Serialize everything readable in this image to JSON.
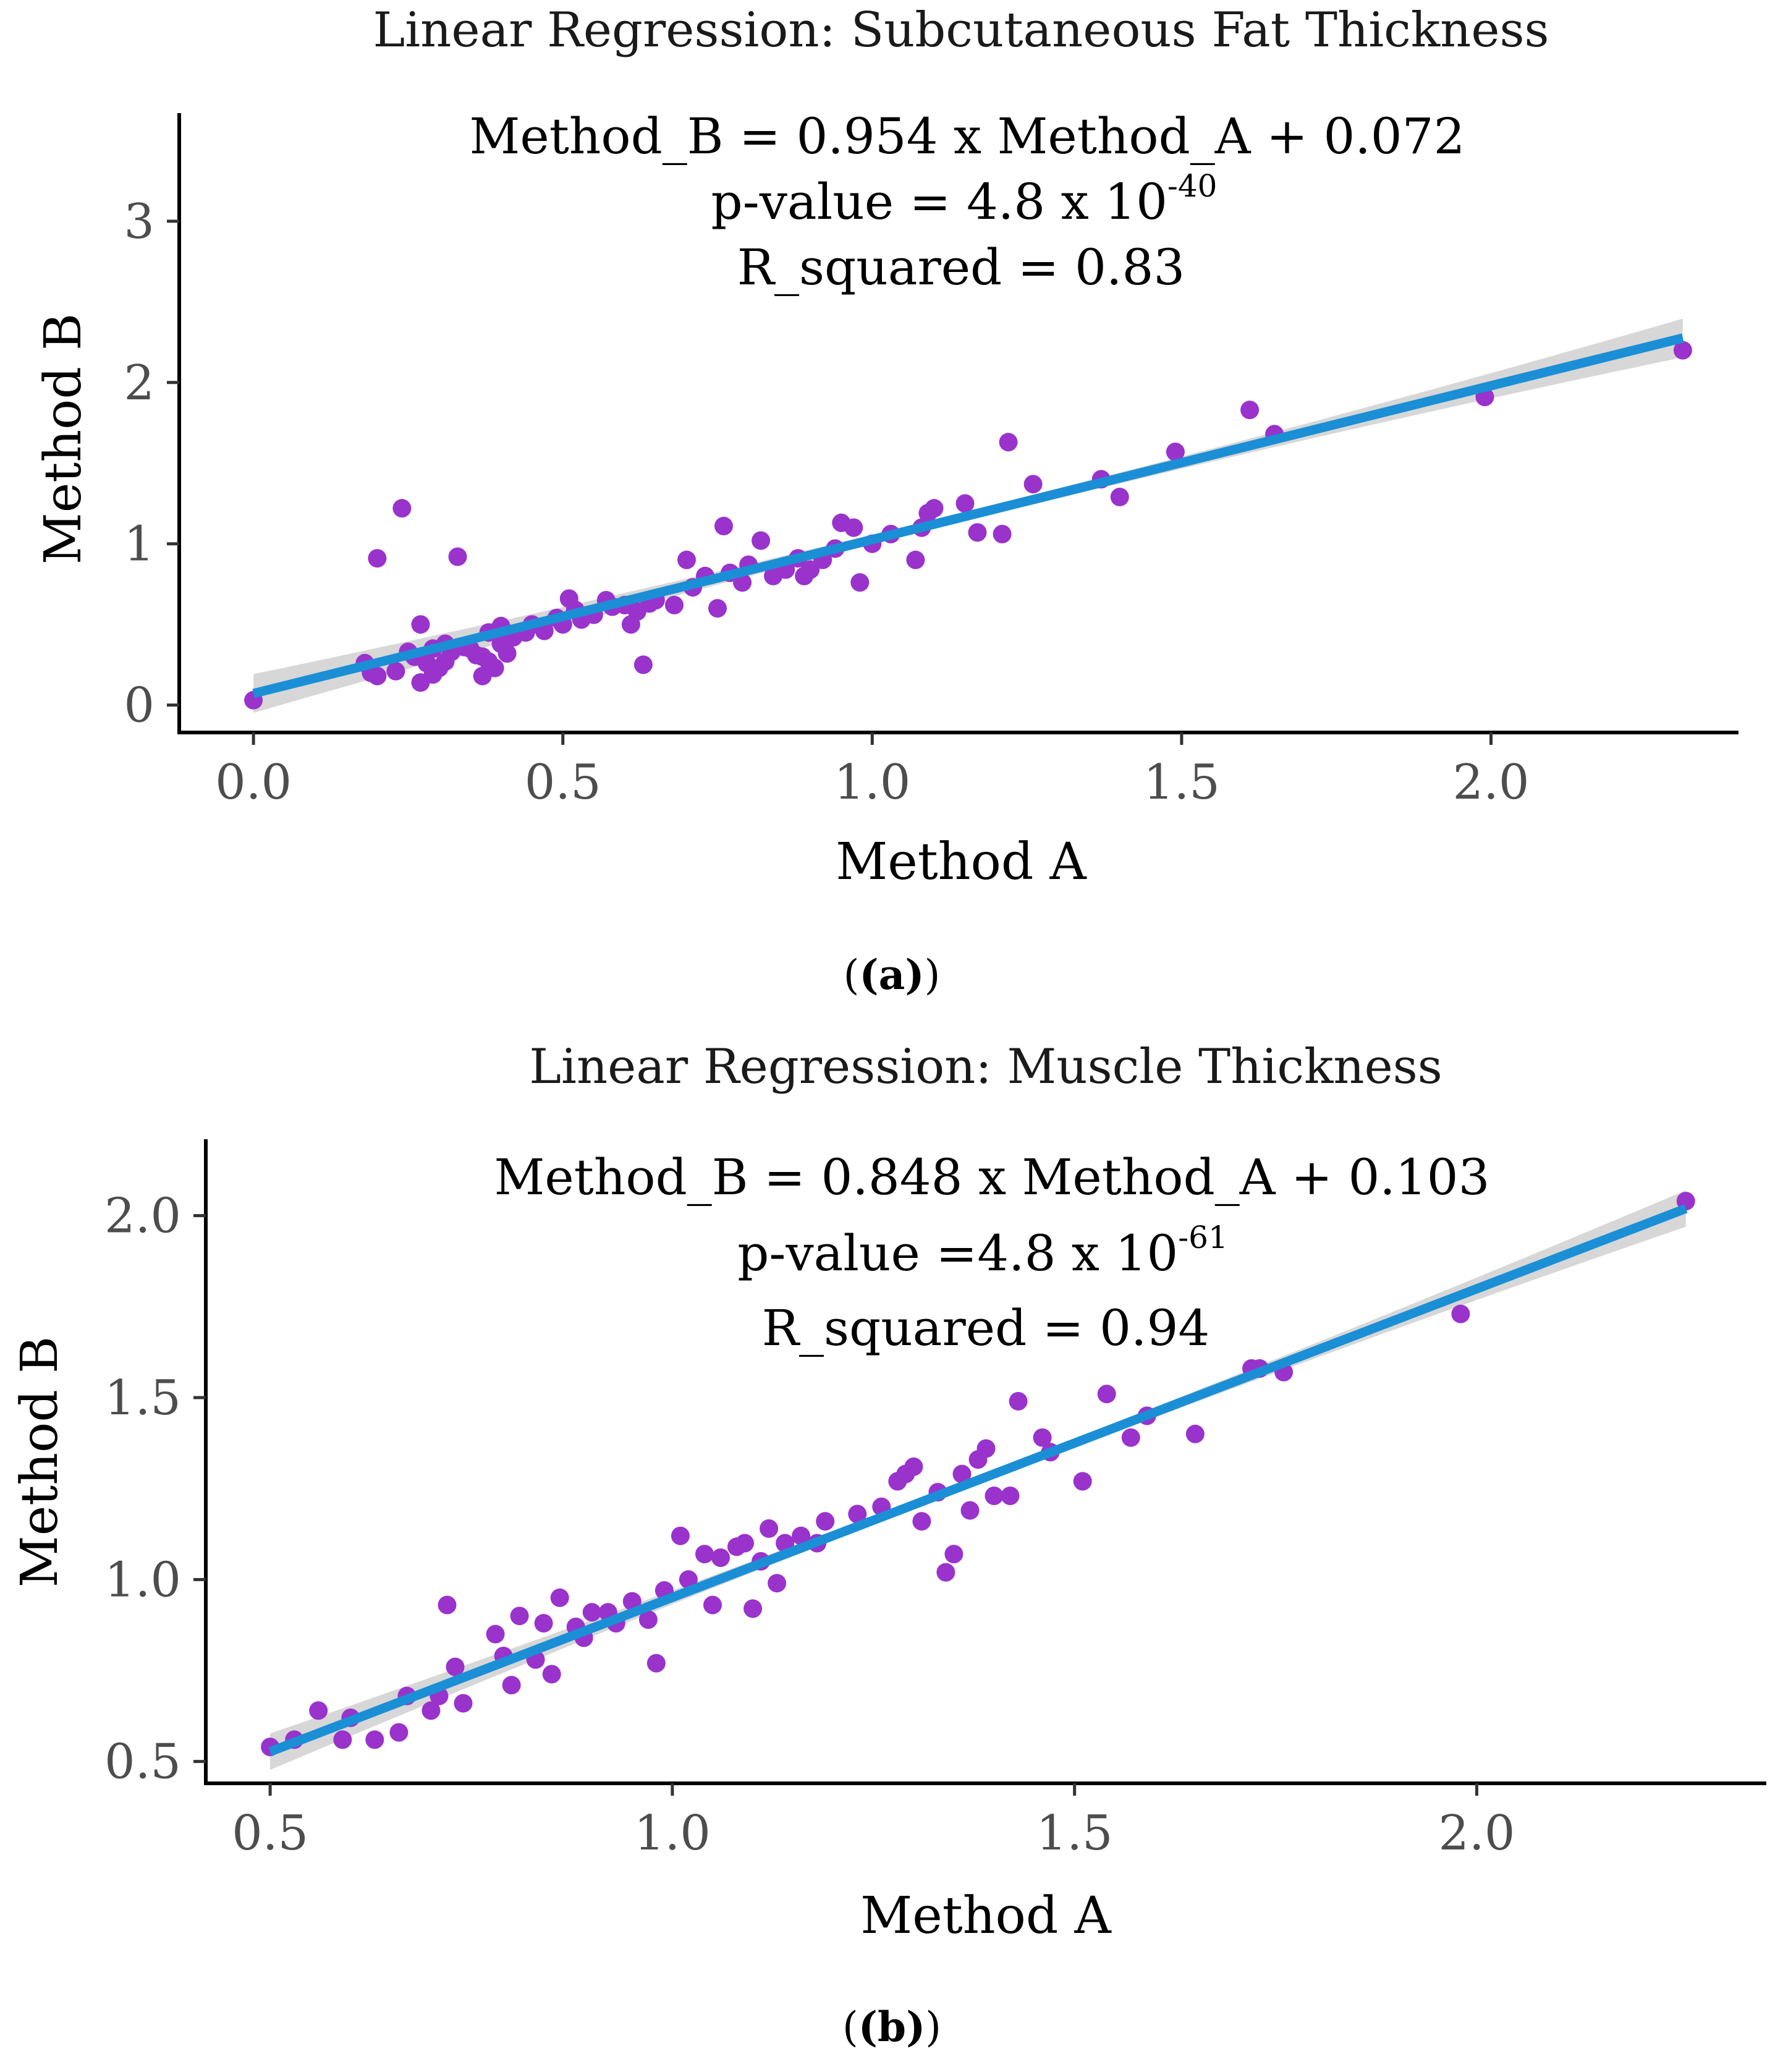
{
  "figure": {
    "panel_labels": [
      "(a)",
      "(b)"
    ]
  },
  "chart_data": [
    {
      "type": "scatter",
      "title": "Linear Regression: Subcutaneous Fat Thickness",
      "xlabel": "Method A",
      "ylabel": "Method B",
      "xlim": [
        -0.12,
        2.4
      ],
      "ylim": [
        -0.17,
        3.67
      ],
      "x_ticks": [
        0.0,
        0.5,
        1.0,
        1.5,
        2.0
      ],
      "x_tick_labels": [
        "0.0",
        "0.5",
        "1.0",
        "1.5",
        "2.0"
      ],
      "y_ticks": [
        0,
        1,
        2,
        3
      ],
      "y_tick_labels": [
        "0",
        "1",
        "2",
        "3"
      ],
      "annotation": {
        "equation": "Method_B = 0.954 x Method_A + 0.072",
        "pvalue_prefix": "p-value = 4.8 x 10",
        "pvalue_exponent": "-40",
        "rsquared": "R_squared = 0.83"
      },
      "regression": {
        "slope": 0.954,
        "intercept": 0.072,
        "x_range": [
          0.0,
          2.31
        ],
        "ci_halfwidth_min": 0.03,
        "ci_halfwidth_max": 0.12
      },
      "point_color": "#9933CC",
      "line_color": "#1A8FD6",
      "band_color": "#D3D3D3",
      "series": [
        {
          "name": "observations",
          "points": [
            [
              0.0,
              0.03
            ],
            [
              0.18,
              0.26
            ],
            [
              0.19,
              0.2
            ],
            [
              0.2,
              0.18
            ],
            [
              0.2,
              0.91
            ],
            [
              0.23,
              0.21
            ],
            [
              0.24,
              1.22
            ],
            [
              0.25,
              0.33
            ],
            [
              0.26,
              0.3
            ],
            [
              0.27,
              0.5
            ],
            [
              0.27,
              0.14
            ],
            [
              0.28,
              0.26
            ],
            [
              0.29,
              0.19
            ],
            [
              0.29,
              0.35
            ],
            [
              0.3,
              0.23
            ],
            [
              0.31,
              0.38
            ],
            [
              0.31,
              0.27
            ],
            [
              0.32,
              0.33
            ],
            [
              0.33,
              0.92
            ],
            [
              0.34,
              0.36
            ],
            [
              0.35,
              0.35
            ],
            [
              0.36,
              0.31
            ],
            [
              0.37,
              0.3
            ],
            [
              0.37,
              0.18
            ],
            [
              0.38,
              0.45
            ],
            [
              0.38,
              0.27
            ],
            [
              0.39,
              0.23
            ],
            [
              0.4,
              0.38
            ],
            [
              0.4,
              0.49
            ],
            [
              0.41,
              0.32
            ],
            [
              0.42,
              0.42
            ],
            [
              0.44,
              0.45
            ],
            [
              0.45,
              0.5
            ],
            [
              0.47,
              0.46
            ],
            [
              0.49,
              0.54
            ],
            [
              0.5,
              0.5
            ],
            [
              0.51,
              0.66
            ],
            [
              0.52,
              0.59
            ],
            [
              0.53,
              0.53
            ],
            [
              0.55,
              0.56
            ],
            [
              0.57,
              0.65
            ],
            [
              0.58,
              0.61
            ],
            [
              0.6,
              0.62
            ],
            [
              0.61,
              0.5
            ],
            [
              0.62,
              0.58
            ],
            [
              0.63,
              0.25
            ],
            [
              0.64,
              0.63
            ],
            [
              0.65,
              0.65
            ],
            [
              0.68,
              0.62
            ],
            [
              0.7,
              0.9
            ],
            [
              0.71,
              0.73
            ],
            [
              0.73,
              0.8
            ],
            [
              0.75,
              0.6
            ],
            [
              0.76,
              1.11
            ],
            [
              0.77,
              0.82
            ],
            [
              0.79,
              0.76
            ],
            [
              0.8,
              0.87
            ],
            [
              0.82,
              1.02
            ],
            [
              0.84,
              0.8
            ],
            [
              0.86,
              0.84
            ],
            [
              0.88,
              0.91
            ],
            [
              0.89,
              0.8
            ],
            [
              0.9,
              0.84
            ],
            [
              0.92,
              0.9
            ],
            [
              0.94,
              0.97
            ],
            [
              0.95,
              1.13
            ],
            [
              0.97,
              1.1
            ],
            [
              0.98,
              0.76
            ],
            [
              1.0,
              1.0
            ],
            [
              1.03,
              1.06
            ],
            [
              1.07,
              0.9
            ],
            [
              1.08,
              1.1
            ],
            [
              1.09,
              1.19
            ],
            [
              1.1,
              1.22
            ],
            [
              1.15,
              1.25
            ],
            [
              1.17,
              1.07
            ],
            [
              1.21,
              1.06
            ],
            [
              1.22,
              1.63
            ],
            [
              1.26,
              1.37
            ],
            [
              1.37,
              1.4
            ],
            [
              1.4,
              1.29
            ],
            [
              1.49,
              1.57
            ],
            [
              1.61,
              1.83
            ],
            [
              1.65,
              1.68
            ],
            [
              1.99,
              1.91
            ],
            [
              2.31,
              2.2
            ]
          ]
        }
      ]
    },
    {
      "type": "scatter",
      "title": "Linear Regression: Muscle Thickness",
      "xlabel": "Method A",
      "ylabel": "Method B",
      "xlim": [
        0.42,
        2.36
      ],
      "ylim": [
        0.44,
        2.21
      ],
      "x_ticks": [
        0.5,
        1.0,
        1.5,
        2.0
      ],
      "x_tick_labels": [
        "0.5",
        "1.0",
        "1.5",
        "2.0"
      ],
      "y_ticks": [
        0.5,
        1.0,
        1.5,
        2.0
      ],
      "y_tick_labels": [
        "0.5",
        "1.0",
        "1.5",
        "2.0"
      ],
      "annotation": {
        "equation": "Method_B = 0.848 x Method_A + 0.103",
        "pvalue_prefix": "p-value =4.8 x 10",
        "pvalue_exponent": "-61",
        "rsquared": "R_squared = 0.94"
      },
      "regression": {
        "slope": 0.848,
        "intercept": 0.103,
        "x_range": [
          0.5,
          2.26
        ],
        "ci_halfwidth_min": 0.012,
        "ci_halfwidth_max": 0.05
      },
      "point_color": "#9933CC",
      "line_color": "#1A8FD6",
      "band_color": "#D3D3D3",
      "series": [
        {
          "name": "observations",
          "points": [
            [
              0.5,
              0.54
            ],
            [
              0.53,
              0.56
            ],
            [
              0.56,
              0.64
            ],
            [
              0.59,
              0.56
            ],
            [
              0.6,
              0.62
            ],
            [
              0.63,
              0.56
            ],
            [
              0.66,
              0.58
            ],
            [
              0.67,
              0.68
            ],
            [
              0.7,
              0.64
            ],
            [
              0.71,
              0.68
            ],
            [
              0.72,
              0.93
            ],
            [
              0.73,
              0.76
            ],
            [
              0.74,
              0.66
            ],
            [
              0.78,
              0.85
            ],
            [
              0.79,
              0.79
            ],
            [
              0.8,
              0.71
            ],
            [
              0.81,
              0.9
            ],
            [
              0.83,
              0.78
            ],
            [
              0.84,
              0.88
            ],
            [
              0.85,
              0.74
            ],
            [
              0.86,
              0.95
            ],
            [
              0.88,
              0.87
            ],
            [
              0.89,
              0.84
            ],
            [
              0.9,
              0.91
            ],
            [
              0.92,
              0.91
            ],
            [
              0.93,
              0.88
            ],
            [
              0.95,
              0.94
            ],
            [
              0.97,
              0.89
            ],
            [
              0.98,
              0.77
            ],
            [
              0.99,
              0.97
            ],
            [
              1.01,
              1.12
            ],
            [
              1.02,
              1.0
            ],
            [
              1.04,
              1.07
            ],
            [
              1.05,
              0.93
            ],
            [
              1.06,
              1.06
            ],
            [
              1.08,
              1.09
            ],
            [
              1.09,
              1.1
            ],
            [
              1.1,
              0.92
            ],
            [
              1.11,
              1.05
            ],
            [
              1.12,
              1.14
            ],
            [
              1.13,
              0.99
            ],
            [
              1.14,
              1.1
            ],
            [
              1.16,
              1.12
            ],
            [
              1.18,
              1.1
            ],
            [
              1.19,
              1.16
            ],
            [
              1.23,
              1.18
            ],
            [
              1.26,
              1.2
            ],
            [
              1.28,
              1.27
            ],
            [
              1.29,
              1.29
            ],
            [
              1.3,
              1.31
            ],
            [
              1.31,
              1.16
            ],
            [
              1.33,
              1.24
            ],
            [
              1.34,
              1.02
            ],
            [
              1.35,
              1.07
            ],
            [
              1.36,
              1.29
            ],
            [
              1.37,
              1.19
            ],
            [
              1.38,
              1.33
            ],
            [
              1.39,
              1.36
            ],
            [
              1.4,
              1.23
            ],
            [
              1.42,
              1.23
            ],
            [
              1.43,
              1.49
            ],
            [
              1.46,
              1.39
            ],
            [
              1.47,
              1.35
            ],
            [
              1.51,
              1.27
            ],
            [
              1.54,
              1.51
            ],
            [
              1.57,
              1.39
            ],
            [
              1.59,
              1.45
            ],
            [
              1.65,
              1.4
            ],
            [
              1.72,
              1.58
            ],
            [
              1.73,
              1.58
            ],
            [
              1.76,
              1.57
            ],
            [
              1.98,
              1.73
            ],
            [
              2.26,
              2.04
            ]
          ]
        }
      ]
    }
  ]
}
